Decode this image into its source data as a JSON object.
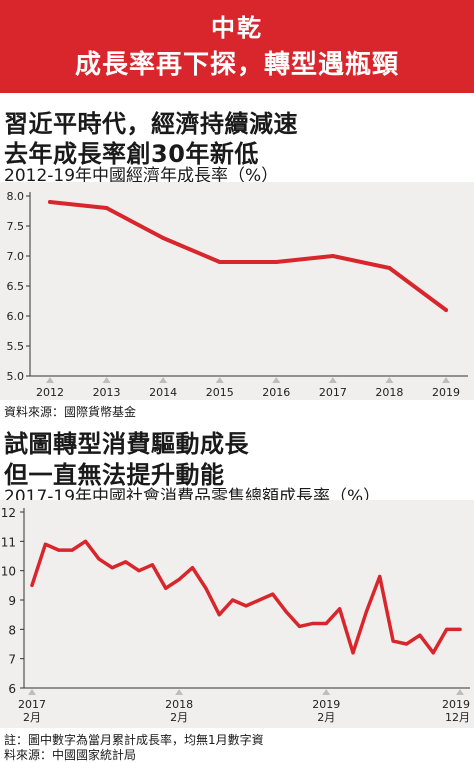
{
  "banner": {
    "line1": "中乾",
    "line2": "成長率再下探，轉型遇瓶頸"
  },
  "section1": {
    "heading1": "習近平時代，經濟持續減速",
    "heading2": "去年成長率創30年新低",
    "subtitle": "2012-19年中國經濟年成長率（%）",
    "source": "資料來源：國際貨幣基金"
  },
  "section2": {
    "heading1": "試圖轉型消費驅動成長",
    "heading2": "但一直無法提升動能",
    "subtitle": "2017-19年中國社會消費品零售總額成長率（%）",
    "note": "註：圖中數字為當月累計成長率，均無1月數字資",
    "source": "料來源：中國國家統計局"
  },
  "colors": {
    "banner": "#d8262c",
    "line": "#d8262c",
    "panel": "#f0efed"
  },
  "chart_data": [
    {
      "type": "line",
      "categories": [
        "2012",
        "2013",
        "2014",
        "2015",
        "2016",
        "2017",
        "2018",
        "2019"
      ],
      "values": [
        7.9,
        7.8,
        7.3,
        6.9,
        6.9,
        7.0,
        6.8,
        6.1
      ],
      "ylim": [
        5.0,
        8.0
      ],
      "yticks": [
        "8.0",
        "7.5",
        "7.0",
        "6.5",
        "6.0",
        "5.5",
        "5.0"
      ],
      "grid": false
    },
    {
      "type": "line",
      "x": [
        "2017-02",
        "2017-03",
        "2017-04",
        "2017-05",
        "2017-06",
        "2017-07",
        "2017-08",
        "2017-09",
        "2017-10",
        "2017-11",
        "2017-12",
        "2018-02",
        "2018-03",
        "2018-04",
        "2018-05",
        "2018-06",
        "2018-07",
        "2018-08",
        "2018-09",
        "2018-10",
        "2018-11",
        "2018-12",
        "2019-02",
        "2019-03",
        "2019-04",
        "2019-05",
        "2019-06",
        "2019-07",
        "2019-08",
        "2019-09",
        "2019-10",
        "2019-11",
        "2019-12"
      ],
      "values": [
        9.5,
        10.9,
        10.7,
        10.7,
        11.0,
        10.4,
        10.1,
        10.3,
        10.0,
        10.2,
        9.4,
        9.7,
        10.1,
        9.4,
        8.5,
        9.0,
        8.8,
        9.0,
        9.2,
        8.6,
        8.1,
        8.2,
        8.2,
        8.7,
        7.2,
        8.6,
        9.8,
        7.6,
        7.5,
        7.8,
        7.2,
        8.0,
        8.0
      ],
      "ylim": [
        6,
        12
      ],
      "yticks": [
        "12",
        "11",
        "10",
        "9",
        "8",
        "7",
        "6"
      ],
      "xtick_labels": [
        {
          "year": "2017",
          "month": "2月"
        },
        {
          "year": "2018",
          "month": "2月"
        },
        {
          "year": "2019",
          "month": "2月"
        },
        {
          "year": "2019",
          "month": "12月"
        }
      ],
      "grid": false
    }
  ]
}
